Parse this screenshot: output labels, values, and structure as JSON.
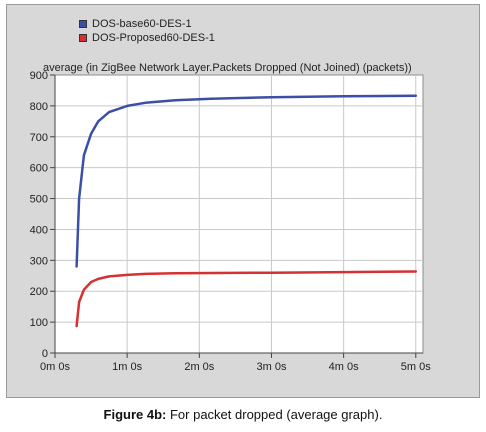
{
  "chart_data": {
    "type": "line",
    "title": "average (in ZigBee Network Layer.Packets Dropped (Not Joined) (packets))",
    "xlabel": "",
    "ylabel": "",
    "x_ticks": [
      "0m 0s",
      "1m 0s",
      "2m 0s",
      "3m 0s",
      "4m 0s",
      "5m 0s"
    ],
    "x_range_seconds": [
      0,
      306
    ],
    "y_ticks": [
      0,
      100,
      200,
      300,
      400,
      500,
      600,
      700,
      800,
      900
    ],
    "ylim": [
      0,
      900
    ],
    "grid": true,
    "legend_position": "top-left",
    "series": [
      {
        "name": "DOS-base60-DES-1",
        "color": "#3b4fa8",
        "x": [
          18,
          20,
          24,
          30,
          36,
          45,
          60,
          75,
          100,
          130,
          180,
          240,
          300
        ],
        "y": [
          280,
          500,
          640,
          710,
          750,
          780,
          800,
          810,
          818,
          823,
          828,
          831,
          833
        ]
      },
      {
        "name": "DOS-Proposed60-DES-1",
        "color": "#d63030",
        "x": [
          18,
          20,
          24,
          30,
          36,
          45,
          60,
          75,
          100,
          130,
          180,
          240,
          300
        ],
        "y": [
          87,
          165,
          205,
          230,
          240,
          248,
          253,
          256,
          258,
          259,
          260,
          262,
          264
        ]
      }
    ]
  },
  "caption": {
    "label": "Figure 4b:",
    "text": " For packet dropped (average graph)."
  }
}
